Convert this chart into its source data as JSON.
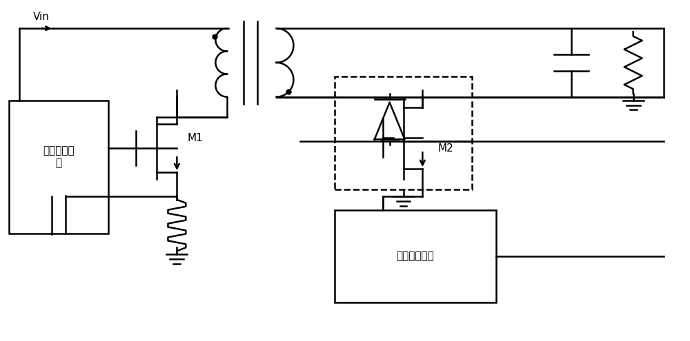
{
  "title": "",
  "background": "#ffffff",
  "line_color": "#000000",
  "line_width": 1.8,
  "figsize": [
    10.0,
    4.95
  ],
  "dpi": 100,
  "labels": {
    "Vin": [
      0.07,
      0.88
    ],
    "M1": [
      0.285,
      0.55
    ],
    "M2": [
      0.62,
      0.38
    ],
    "primary_box_text": "原边控制芯\n片",
    "sync_box_text": "同步整流电路"
  }
}
